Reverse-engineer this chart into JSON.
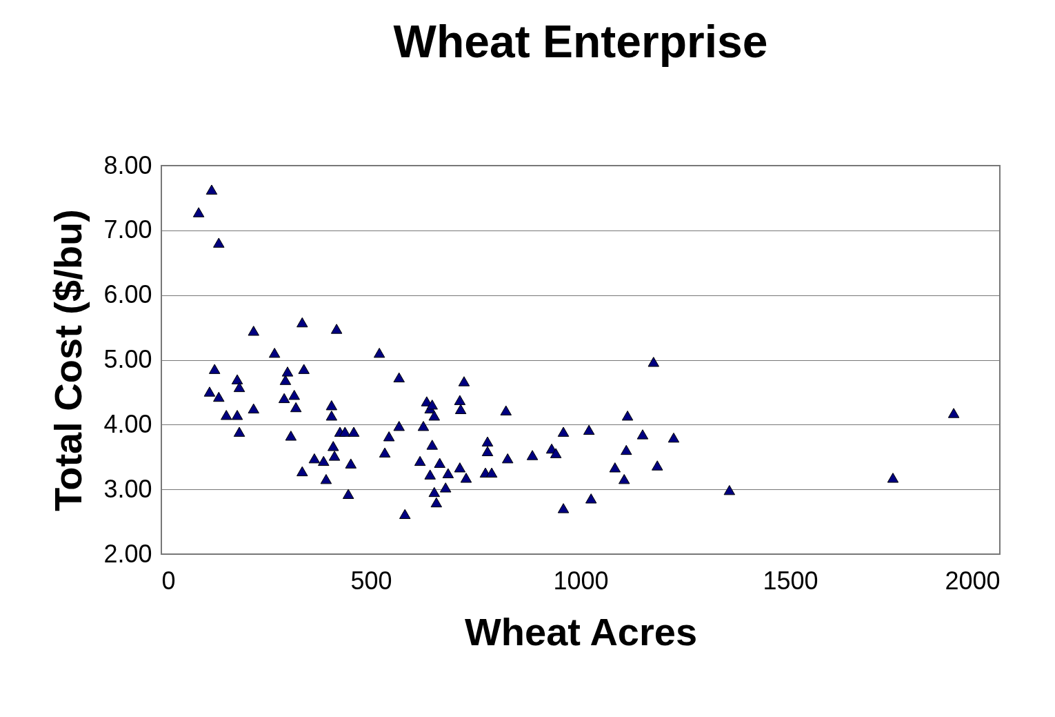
{
  "chart_data": {
    "type": "scatter",
    "title": "Wheat Enterprise",
    "xlabel": "Wheat Acres",
    "ylabel": "Total Cost ($/bu)",
    "xlim": [
      0,
      2000
    ],
    "xticks": [
      0,
      500,
      1000,
      1500,
      2000
    ],
    "ylim": [
      2,
      8
    ],
    "yticks": [
      {
        "value": 2,
        "label": "2.00"
      },
      {
        "value": 3,
        "label": "3.00"
      },
      {
        "value": 4,
        "label": "4.00"
      },
      {
        "value": 5,
        "label": "5.00"
      },
      {
        "value": 6,
        "label": "6.00"
      },
      {
        "value": 7,
        "label": "7.00"
      },
      {
        "value": 8,
        "label": "8.00"
      }
    ],
    "grid": "y",
    "marker": "triangle",
    "series": [
      {
        "color": "#000080",
        "x": [
          89,
          120,
          137,
          115,
          127,
          137,
          155,
          181,
          186,
          181,
          186,
          220,
          220,
          270,
          293,
          296,
          301,
          317,
          321,
          309,
          336,
          340,
          336,
          365,
          387,
          393,
          406,
          406,
          410,
          413,
          418,
          426,
          438,
          446,
          452,
          459,
          520,
          533,
          543,
          567,
          567,
          581,
          617,
          625,
          633,
          641,
          646,
          651,
          641,
          646,
          651,
          656,
          664,
          678,
          684,
          712,
          714,
          712,
          722,
          727,
          778,
          778,
          773,
          788,
          822,
          826,
          885,
          931,
          941,
          959,
          959,
          1020,
          1025,
          1082,
          1104,
          1109,
          1112,
          1148,
          1174,
          1183,
          1222,
          1355,
          1745,
          1890
        ],
        "values": [
          7.28,
          7.63,
          6.81,
          4.51,
          4.86,
          4.43,
          4.15,
          4.7,
          4.58,
          4.15,
          3.89,
          5.45,
          4.25,
          5.11,
          4.41,
          4.69,
          4.82,
          4.46,
          4.27,
          3.83,
          5.58,
          4.86,
          3.28,
          3.48,
          3.44,
          3.16,
          4.3,
          4.14,
          3.67,
          3.52,
          5.48,
          3.89,
          3.89,
          2.93,
          3.4,
          3.89,
          5.11,
          3.57,
          3.82,
          4.73,
          3.98,
          2.62,
          3.44,
          3.98,
          4.36,
          4.25,
          4.31,
          4.14,
          3.23,
          3.69,
          2.96,
          2.8,
          3.41,
          3.03,
          3.25,
          4.38,
          4.24,
          3.34,
          4.67,
          3.18,
          3.74,
          3.59,
          3.26,
          3.26,
          4.22,
          3.48,
          3.53,
          3.63,
          3.56,
          3.89,
          2.71,
          3.92,
          2.86,
          3.34,
          3.16,
          3.61,
          4.14,
          3.85,
          4.97,
          3.37,
          3.8,
          2.99,
          3.18,
          4.18
        ]
      }
    ]
  }
}
